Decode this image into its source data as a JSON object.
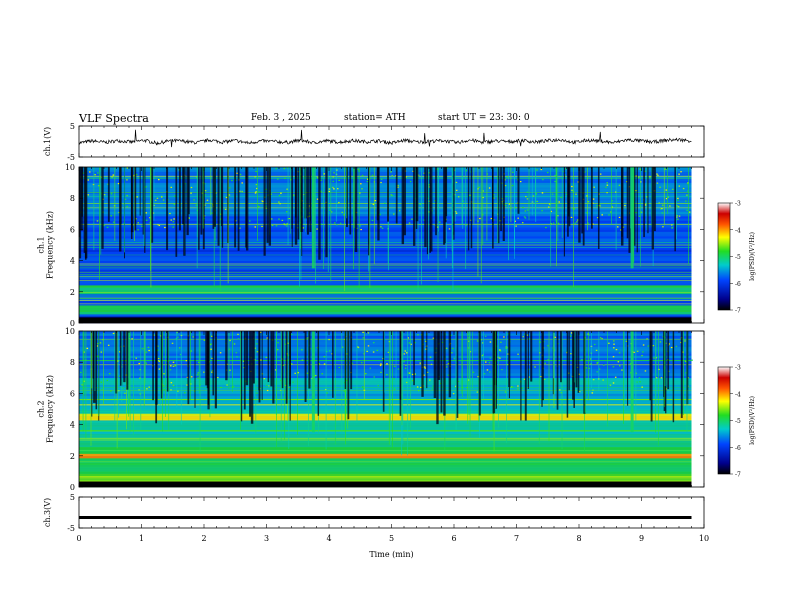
{
  "header": {
    "title": "VLF  Spectra",
    "date": "Feb. 3  , 2025",
    "station": "station= ATH",
    "start": "start  UT  =    23: 30: 0"
  },
  "chart_data": [
    {
      "type": "line",
      "panel": "ch1-waveform",
      "ylabel": "ch.1(V)",
      "ylim": [
        -5,
        5
      ],
      "yticks": [
        "5",
        "-5"
      ],
      "xlim": [
        0,
        10
      ],
      "note_series_shape": "noisy trace around 0 V spanning 0 to ~9.8 min",
      "series": [
        {
          "values": [
            -0.5,
            0.2,
            -0.3,
            0.3,
            -0.2,
            0.4,
            -0.6,
            0.3,
            0.1,
            -0.4,
            0.5,
            -0.2,
            0.3,
            -0.5,
            0.2,
            0.0,
            -0.3,
            0.4,
            -0.4,
            0.2,
            -0.2,
            0.3,
            -0.1,
            0.2,
            -0.5,
            0.4,
            -0.2,
            0.1,
            0.3,
            -0.4,
            0.5,
            -0.3,
            0.2,
            -0.1,
            0.4,
            -0.2,
            0.3,
            0.6,
            -0.3,
            0.4,
            0.2,
            -0.4,
            0.5,
            0.3,
            -0.2,
            0.4,
            0.6,
            0.2
          ]
        }
      ]
    },
    {
      "type": "heatmap",
      "panel": "ch1-spectrogram",
      "ylabel": "ch.1\nFrequency  (kHz)",
      "ylim": [
        0,
        10
      ],
      "yticks": [
        "0",
        "2",
        "4",
        "6",
        "8",
        "10"
      ],
      "xlim": [
        0,
        10
      ],
      "colorbar": {
        "label": "log(PSD)(V²/Hz)",
        "range": [
          -7,
          -3
        ],
        "ticks": [
          "-3",
          "-4",
          "-5",
          "-6",
          "-7"
        ]
      }
    },
    {
      "type": "heatmap",
      "panel": "ch2-spectrogram",
      "ylabel": "ch.2\nFrequency  (kHz)",
      "ylim": [
        0,
        10
      ],
      "yticks": [
        "0",
        "2",
        "4",
        "6",
        "8",
        "10"
      ],
      "xlim": [
        0,
        10
      ],
      "colorbar": {
        "label": "log(PSD)(V²/Hz)",
        "range": [
          -7,
          -3
        ],
        "ticks": [
          "-3",
          "-4",
          "-5",
          "-6",
          "-7"
        ]
      }
    },
    {
      "type": "line",
      "panel": "ch3-waveform",
      "ylabel": "ch.3(V)",
      "ylim": [
        -5,
        5
      ],
      "yticks": [
        "5",
        "-5"
      ],
      "xlabel": "Time  (min)",
      "xlim": [
        0,
        10
      ],
      "xticks": [
        "0",
        "1",
        "2",
        "3",
        "4",
        "5",
        "6",
        "7",
        "8",
        "9",
        "10"
      ],
      "series": [
        {
          "values": [
            -1.6,
            -1.6,
            -1.6,
            -1.6,
            -1.6,
            -1.6,
            -1.6,
            -1.6,
            -1.6,
            -1.6,
            -1.6
          ]
        }
      ]
    }
  ]
}
